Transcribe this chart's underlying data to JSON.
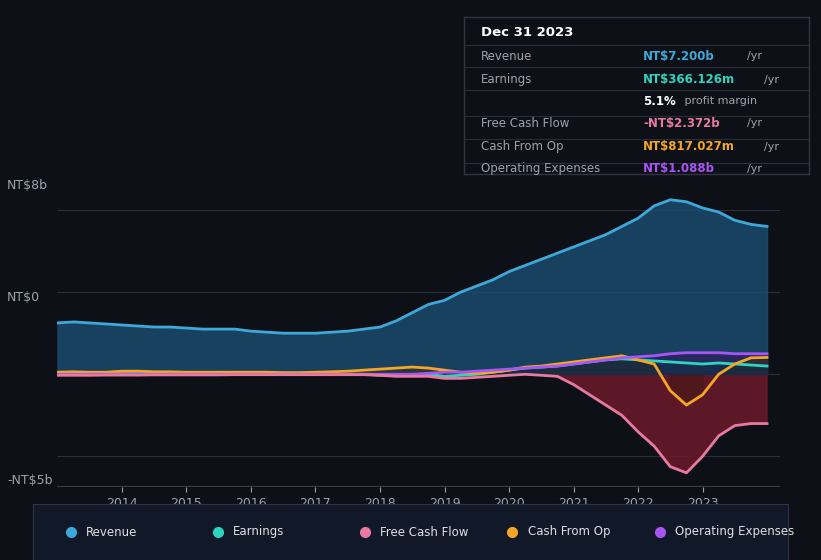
{
  "background_color": "#0d1117",
  "plot_bg_color": "#0d1117",
  "grid_color": "#2a2d3a",
  "text_color": "#9ba3af",
  "title_color": "#ffffff",
  "ylabel_top": "NT$8b",
  "ylabel_zero": "NT$0",
  "ylabel_bottom": "-NT$5b",
  "ylim": [
    -5.5,
    9.5
  ],
  "years": [
    2013.0,
    2013.25,
    2013.5,
    2013.75,
    2014.0,
    2014.25,
    2014.5,
    2014.75,
    2015.0,
    2015.25,
    2015.5,
    2015.75,
    2016.0,
    2016.25,
    2016.5,
    2016.75,
    2017.0,
    2017.25,
    2017.5,
    2017.75,
    2018.0,
    2018.25,
    2018.5,
    2018.75,
    2019.0,
    2019.25,
    2019.5,
    2019.75,
    2020.0,
    2020.25,
    2020.5,
    2020.75,
    2021.0,
    2021.25,
    2021.5,
    2021.75,
    2022.0,
    2022.25,
    2022.5,
    2022.75,
    2023.0,
    2023.25,
    2023.5,
    2023.75,
    2024.0
  ],
  "revenue": [
    2.5,
    2.55,
    2.5,
    2.45,
    2.4,
    2.35,
    2.3,
    2.3,
    2.25,
    2.2,
    2.2,
    2.2,
    2.1,
    2.05,
    2.0,
    2.0,
    2.0,
    2.05,
    2.1,
    2.2,
    2.3,
    2.6,
    3.0,
    3.4,
    3.6,
    4.0,
    4.3,
    4.6,
    5.0,
    5.3,
    5.6,
    5.9,
    6.2,
    6.5,
    6.8,
    7.2,
    7.6,
    8.2,
    8.5,
    8.4,
    8.1,
    7.9,
    7.5,
    7.3,
    7.2
  ],
  "earnings": [
    0.05,
    0.04,
    0.04,
    0.04,
    0.03,
    0.03,
    0.02,
    0.02,
    0.02,
    0.01,
    0.01,
    0.01,
    0.0,
    0.0,
    0.0,
    0.0,
    0.0,
    0.0,
    0.0,
    0.0,
    -0.05,
    -0.05,
    -0.03,
    0.0,
    -0.1,
    -0.05,
    0.0,
    0.1,
    0.2,
    0.3,
    0.35,
    0.4,
    0.5,
    0.6,
    0.7,
    0.75,
    0.7,
    0.65,
    0.6,
    0.55,
    0.5,
    0.55,
    0.5,
    0.45,
    0.4
  ],
  "free_cash_flow": [
    -0.05,
    -0.05,
    -0.05,
    -0.04,
    -0.04,
    -0.04,
    -0.03,
    -0.03,
    -0.03,
    -0.03,
    -0.03,
    -0.02,
    -0.02,
    -0.02,
    -0.02,
    -0.02,
    -0.02,
    -0.02,
    -0.02,
    -0.02,
    -0.05,
    -0.1,
    -0.1,
    -0.1,
    -0.2,
    -0.2,
    -0.15,
    -0.1,
    -0.05,
    0.0,
    -0.05,
    -0.1,
    -0.5,
    -1.0,
    -1.5,
    -2.0,
    -2.8,
    -3.5,
    -4.5,
    -4.8,
    -4.0,
    -3.0,
    -2.5,
    -2.4,
    -2.4
  ],
  "cash_from_op": [
    0.1,
    0.12,
    0.1,
    0.1,
    0.15,
    0.15,
    0.12,
    0.12,
    0.1,
    0.1,
    0.1,
    0.1,
    0.1,
    0.1,
    0.08,
    0.08,
    0.1,
    0.12,
    0.15,
    0.2,
    0.25,
    0.3,
    0.35,
    0.3,
    0.2,
    0.1,
    0.05,
    0.1,
    0.2,
    0.35,
    0.4,
    0.5,
    0.6,
    0.7,
    0.8,
    0.9,
    0.7,
    0.5,
    -0.8,
    -1.5,
    -1.0,
    0.0,
    0.5,
    0.8,
    0.82
  ],
  "operating_expenses": [
    0.0,
    0.0,
    0.0,
    0.0,
    0.0,
    0.0,
    0.0,
    0.0,
    0.0,
    0.0,
    0.0,
    0.0,
    0.0,
    0.0,
    0.0,
    0.0,
    0.0,
    0.0,
    0.0,
    0.0,
    0.0,
    0.0,
    0.0,
    0.05,
    0.1,
    0.1,
    0.15,
    0.2,
    0.25,
    0.3,
    0.35,
    0.4,
    0.5,
    0.6,
    0.7,
    0.8,
    0.85,
    0.9,
    1.0,
    1.05,
    1.05,
    1.05,
    1.0,
    1.0,
    1.0
  ],
  "revenue_color": "#3ea8d8",
  "earnings_color": "#2dd4bf",
  "fcf_color": "#e879a0",
  "cashop_color": "#f5a623",
  "opex_color": "#a855f7",
  "revenue_fill_color": "#1a4a6e",
  "fcf_fill_color": "#6b1a2a",
  "legend_bg": "#111827",
  "info_box_bg": "#111111",
  "xticks": [
    2014,
    2015,
    2016,
    2017,
    2018,
    2019,
    2020,
    2021,
    2022,
    2023
  ],
  "xlim": [
    2013.0,
    2024.2
  ]
}
